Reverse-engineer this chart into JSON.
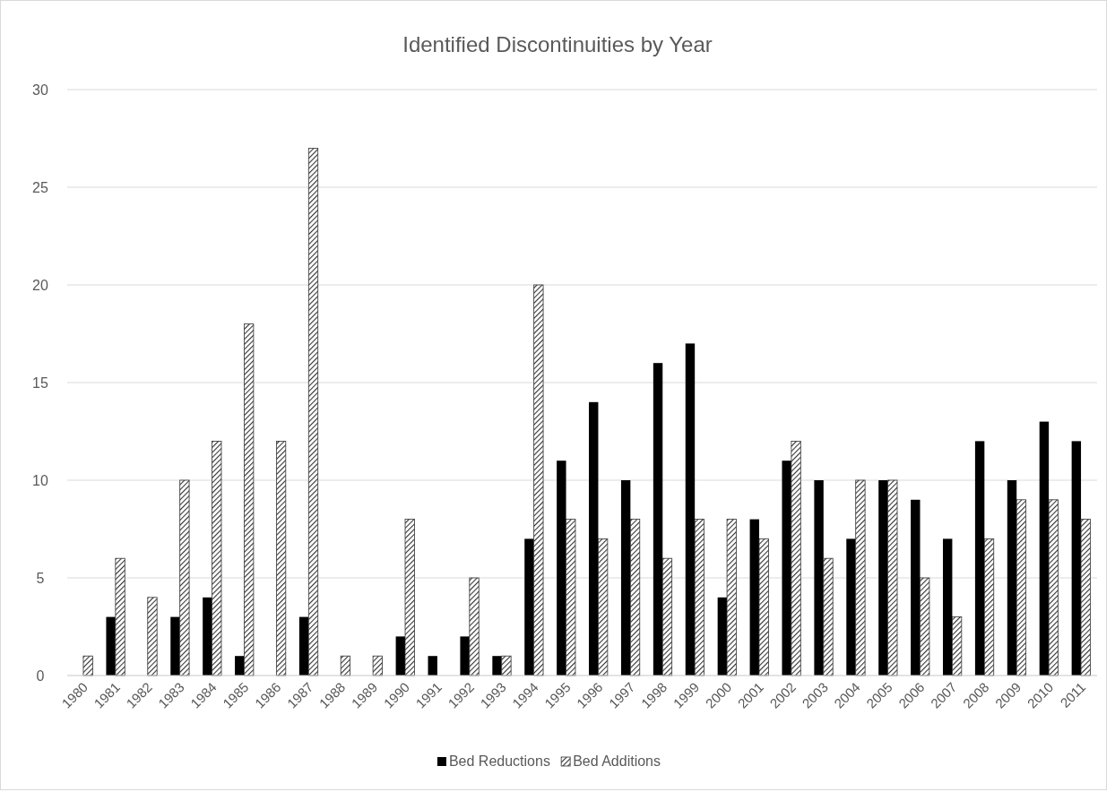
{
  "chart_data": {
    "type": "bar",
    "title": "Identified Discontinuities by Year",
    "categories": [
      "1980",
      "1981",
      "1982",
      "1983",
      "1984",
      "1985",
      "1986",
      "1987",
      "1988",
      "1989",
      "1990",
      "1991",
      "1992",
      "1993",
      "1994",
      "1995",
      "1996",
      "1997",
      "1998",
      "1999",
      "2000",
      "2001",
      "2002",
      "2003",
      "2004",
      "2005",
      "2006",
      "2007",
      "2008",
      "2009",
      "2010",
      "2011"
    ],
    "series": [
      {
        "name": "Bed Reductions",
        "color": "#000000",
        "values": [
          0,
          3,
          0,
          3,
          4,
          1,
          0,
          3,
          0,
          0,
          2,
          1,
          2,
          1,
          7,
          11,
          14,
          10,
          16,
          17,
          4,
          8,
          11,
          10,
          7,
          10,
          9,
          7,
          12,
          10,
          13,
          12
        ]
      },
      {
        "name": "Bed Additions",
        "color": "#333333",
        "values": [
          1,
          6,
          4,
          10,
          12,
          18,
          12,
          27,
          1,
          1,
          8,
          0,
          5,
          1,
          20,
          8,
          7,
          8,
          6,
          8,
          8,
          7,
          12,
          6,
          10,
          10,
          5,
          3,
          7,
          9,
          9,
          8
        ]
      }
    ],
    "ylim": [
      0,
      30
    ],
    "yticks": [
      0,
      5,
      10,
      15,
      20,
      25,
      30
    ],
    "grid": "y",
    "legend": "bottom"
  }
}
